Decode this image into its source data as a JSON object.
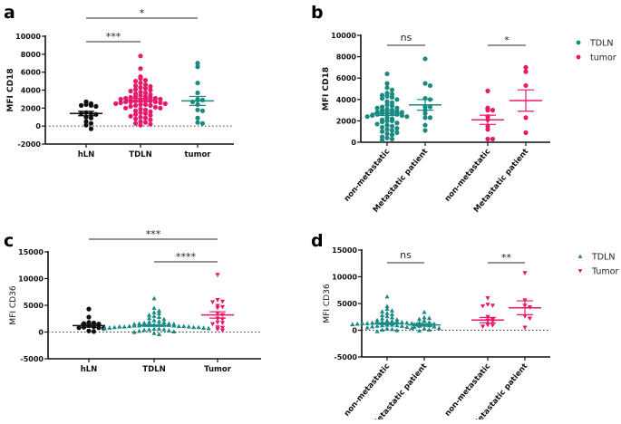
{
  "colors": {
    "black": "#111111",
    "teal": "#1a8a83",
    "pink": "#e8186b"
  },
  "chart_data": [
    {
      "panel": "a",
      "type": "scatter",
      "ylabel": "MFI CD18",
      "ylabel_bold": true,
      "ylim": [
        -2000,
        10000
      ],
      "yticks": [
        "10000",
        "8000",
        "6000",
        "4000",
        "2000",
        "0",
        "-2000"
      ],
      "zero_line": true,
      "rotated_xlabels": false,
      "groups": [
        {
          "label": "hLN",
          "color": "black",
          "marker": "circle",
          "mean": 1400,
          "sem": 250,
          "values": [
            2700,
            2500,
            2400,
            2300,
            2300,
            2200,
            1500,
            1400,
            1400,
            1300,
            1000,
            900,
            500,
            300,
            100,
            -300
          ]
        },
        {
          "label": "TDLN",
          "color": "pink",
          "marker": "circle",
          "mean": 2900,
          "sem": 200,
          "values": [
            7800,
            6400,
            5500,
            5300,
            5100,
            5000,
            4800,
            4600,
            4500,
            4400,
            4300,
            4200,
            4100,
            4000,
            3900,
            3800,
            3700,
            3600,
            3500,
            3400,
            3300,
            3300,
            3200,
            3200,
            3100,
            3100,
            3000,
            3000,
            2900,
            2900,
            2800,
            2800,
            2700,
            2700,
            2700,
            2600,
            2600,
            2500,
            2500,
            2400,
            2400,
            2300,
            2300,
            2200,
            2100,
            2000,
            2000,
            1900,
            1800,
            1700,
            1600,
            1500,
            1400,
            1300,
            1200,
            1100,
            1000,
            900,
            800,
            700,
            500,
            400,
            300,
            200,
            100
          ]
        },
        {
          "label": "tumor",
          "color": "teal",
          "marker": "circle",
          "mean": 2800,
          "sem": 500,
          "values": [
            7000,
            6600,
            4800,
            3700,
            3000,
            2900,
            2900,
            2700,
            2400,
            1800,
            1700,
            900,
            400,
            300
          ]
        }
      ],
      "significance": [
        {
          "from": 0,
          "to": 1,
          "label": "***"
        },
        {
          "from": 0,
          "to": 2,
          "label": "*"
        }
      ],
      "legend": []
    },
    {
      "panel": "b",
      "type": "scatter",
      "ylabel": "MFI CD18",
      "ylabel_bold": true,
      "ylim": [
        0,
        10000
      ],
      "yticks": [
        "10000",
        "8000",
        "6000",
        "4000",
        "2000",
        "0"
      ],
      "zero_line": false,
      "rotated_xlabels": true,
      "groups": [
        {
          "label": "non-metastatic",
          "color": "teal",
          "marker": "circle",
          "mean": 2700,
          "sem": 200,
          "values": [
            6400,
            5500,
            5100,
            4900,
            4600,
            4500,
            4400,
            4300,
            4200,
            4100,
            4000,
            3800,
            3700,
            3500,
            3400,
            3300,
            3200,
            3200,
            3100,
            3000,
            3000,
            2900,
            2800,
            2800,
            2700,
            2700,
            2700,
            2600,
            2600,
            2500,
            2500,
            2400,
            2400,
            2300,
            2200,
            2100,
            2000,
            2000,
            1900,
            1800,
            1700,
            1600,
            1500,
            1400,
            1300,
            1200,
            1100,
            1000,
            900,
            800,
            700,
            500,
            400,
            300,
            200
          ]
        },
        {
          "label": "Metastatic patient",
          "color": "teal",
          "marker": "circle",
          "mean": 3500,
          "sem": 500,
          "values": [
            7800,
            5500,
            5300,
            4100,
            4000,
            3300,
            3300,
            3000,
            2700,
            2300,
            2300,
            1600,
            1100
          ]
        },
        {
          "label": "non-metastatic",
          "color": "pink",
          "marker": "circle",
          "mean": 2100,
          "sem": 430,
          "values": [
            4800,
            3200,
            3000,
            3000,
            2400,
            2100,
            1500,
            1200,
            300,
            300
          ]
        },
        {
          "label": "Metastatic patient",
          "color": "pink",
          "marker": "circle",
          "mean": 3900,
          "sem": 1000,
          "values": [
            7000,
            6600,
            5300,
            2300,
            900
          ]
        }
      ],
      "significance": [
        {
          "from": 0,
          "to": 1,
          "label": "ns"
        },
        {
          "from": 2,
          "to": 3,
          "label": "*"
        }
      ],
      "legend": [
        {
          "label": "TDLN",
          "color": "teal",
          "marker": "circle"
        },
        {
          "label": "tumor",
          "color": "pink",
          "marker": "circle"
        }
      ]
    },
    {
      "panel": "c",
      "type": "scatter",
      "ylabel": "MFI CD36",
      "ylabel_bold": false,
      "ylim": [
        -5000,
        15000
      ],
      "yticks": [
        "15000",
        "10000",
        "5000",
        "0",
        "-5000"
      ],
      "zero_line": true,
      "rotated_xlabels": false,
      "groups": [
        {
          "label": "hLN",
          "color": "black",
          "marker": "circle",
          "mean": 1200,
          "sem": 300,
          "values": [
            4300,
            2800,
            1800,
            1700,
            1600,
            1500,
            1200,
            1000,
            900,
            800,
            800,
            700,
            200,
            100
          ]
        },
        {
          "label": "TDLN",
          "color": "teal",
          "marker": "triangle-up",
          "mean": 1200,
          "sem": 150,
          "values": [
            6300,
            4500,
            4000,
            3700,
            3500,
            3200,
            3000,
            2800,
            2600,
            2400,
            2200,
            2000,
            1900,
            1800,
            1700,
            1600,
            1600,
            1500,
            1500,
            1400,
            1400,
            1400,
            1300,
            1300,
            1300,
            1200,
            1200,
            1200,
            1100,
            1100,
            1100,
            1000,
            1000,
            1000,
            900,
            900,
            900,
            800,
            800,
            700,
            700,
            600,
            600,
            500,
            500,
            400,
            300,
            200,
            100,
            0,
            -200,
            -400
          ]
        },
        {
          "label": "Tumor",
          "color": "pink",
          "marker": "triangle-down",
          "mean": 3200,
          "sem": 600,
          "values": [
            10700,
            6000,
            5700,
            5600,
            4900,
            4700,
            4500,
            3500,
            3200,
            2500,
            2400,
            1800,
            1700,
            1500,
            900,
            800,
            500,
            300
          ]
        }
      ],
      "significance": [
        {
          "from": 0,
          "to": 2,
          "label": "***"
        },
        {
          "from": 1,
          "to": 2,
          "label": "****"
        }
      ],
      "legend": []
    },
    {
      "panel": "d",
      "type": "scatter",
      "ylabel": "MFI CD36",
      "ylabel_bold": false,
      "ylim": [
        -5000,
        15000
      ],
      "yticks": [
        "15000",
        "10000",
        "5000",
        "0",
        "-5000"
      ],
      "zero_line": true,
      "rotated_xlabels": true,
      "groups": [
        {
          "label": "non-metastatic",
          "color": "teal",
          "marker": "triangle-up",
          "mean": 1200,
          "sem": 150,
          "values": [
            6300,
            4500,
            4000,
            3700,
            3500,
            3200,
            3000,
            2800,
            2600,
            2400,
            2200,
            2000,
            1900,
            1800,
            1700,
            1600,
            1600,
            1500,
            1500,
            1400,
            1400,
            1300,
            1300,
            1300,
            1200,
            1200,
            1100,
            1100,
            1000,
            1000,
            900,
            900,
            800,
            800,
            700,
            600,
            500,
            400,
            300,
            200,
            100,
            0,
            -200
          ]
        },
        {
          "label": "Metastatic patient",
          "color": "teal",
          "marker": "triangle-up",
          "mean": 1000,
          "sem": 250,
          "values": [
            3400,
            2400,
            2300,
            2100,
            1800,
            1500,
            1400,
            1200,
            1100,
            1000,
            900,
            800,
            700,
            600,
            400,
            300,
            100,
            -100
          ]
        },
        {
          "label": "non-metastatic",
          "color": "pink",
          "marker": "triangle-down",
          "mean": 1900,
          "sem": 500,
          "values": [
            6000,
            4800,
            4600,
            4500,
            2500,
            2000,
            1800,
            1700,
            1000,
            900,
            700
          ]
        },
        {
          "label": "Metastatic patient",
          "color": "pink",
          "marker": "triangle-down",
          "mean": 4200,
          "sem": 1300,
          "values": [
            10700,
            5600,
            4600,
            4300,
            2600,
            2200,
            500
          ]
        }
      ],
      "significance": [
        {
          "from": 0,
          "to": 1,
          "label": "ns"
        },
        {
          "from": 2,
          "to": 3,
          "label": "**"
        }
      ],
      "legend": [
        {
          "label": "TDLN",
          "color": "teal",
          "marker": "triangle-up"
        },
        {
          "label": "Tumor",
          "color": "pink",
          "marker": "triangle-down"
        }
      ]
    }
  ]
}
